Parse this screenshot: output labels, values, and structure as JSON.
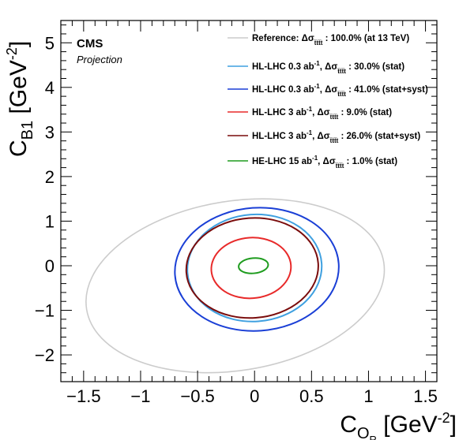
{
  "chart_data": {
    "type": "contour",
    "experiment": "CMS",
    "subtitle": "Projection",
    "xlabel": {
      "base": "C",
      "sub": "O",
      "subsub": "R",
      "unit": "[GeV",
      "exp": "-2",
      "close": "]"
    },
    "ylabel": {
      "base": "C",
      "sub": "B1",
      "unit": "[GeV",
      "exp": "-2",
      "close": "]"
    },
    "xlim": [
      -1.7,
      1.6
    ],
    "ylim": [
      -2.6,
      5.5
    ],
    "x_major_ticks": [
      -1.5,
      -1,
      -0.5,
      0,
      0.5,
      1,
      1.5
    ],
    "x_tick_labels": [
      "−1.5",
      "−1",
      "−0.5",
      "0",
      "0.5",
      "1",
      "1.5"
    ],
    "y_major_ticks": [
      -2,
      -1,
      0,
      1,
      2,
      3,
      4,
      5
    ],
    "y_tick_labels": [
      "−2",
      "−1",
      "0",
      "1",
      "2",
      "3",
      "4",
      "5"
    ],
    "series": [
      {
        "name": "Reference: Δσ_tttt : 100.0% (at 13 TeV)",
        "pre": "Reference: Δσ",
        "lumi": "",
        "post": " : 100.0% (at 13 TeV)",
        "color": "#cccccc",
        "ellipse": {
          "cx": -0.17,
          "cy": -0.45,
          "rx": 1.32,
          "ry": 1.9,
          "rotation_deg": -9
        }
      },
      {
        "name": "HL-LHC 0.3 ab-1, Δσ_tttt : 30.0% (stat)",
        "pre": "HL-LHC 0.3 ab",
        "lumi": "-1",
        "post": ", Δσ",
        "tail": " : 30.0% (stat)",
        "color": "#3fa0e0",
        "ellipse": {
          "cx": 0.0,
          "cy": -0.05,
          "rx": 0.59,
          "ry": 1.2,
          "rotation_deg": -4
        }
      },
      {
        "name": "HL-LHC 0.3 ab-1, Δσ_tttt : 41.0% (stat+syst)",
        "pre": "HL-LHC 0.3 ab",
        "lumi": "-1",
        "post": ", Δσ",
        "tail": " : 41.0% (stat+syst)",
        "color": "#1a3fd6",
        "ellipse": {
          "cx": 0.02,
          "cy": -0.08,
          "rx": 0.72,
          "ry": 1.38,
          "rotation_deg": -4
        }
      },
      {
        "name": "HL-LHC 3 ab-1, Δσ_tttt : 9.0% (stat)",
        "pre": "HL-LHC 3 ab",
        "lumi": "-1",
        "post": ", Δσ",
        "tail": " : 9.0% (stat)",
        "color": "#e82a2a",
        "ellipse": {
          "cx": -0.03,
          "cy": -0.05,
          "rx": 0.35,
          "ry": 0.68,
          "rotation_deg": -4
        }
      },
      {
        "name": "HL-LHC 3 ab-1, Δσ_tttt : 26.0% (stat+syst)",
        "pre": "HL-LHC 3 ab",
        "lumi": "-1",
        "post": ", Δσ",
        "tail": " : 26.0% (stat+syst)",
        "color": "#7a0c0c",
        "ellipse": {
          "cx": -0.02,
          "cy": -0.05,
          "rx": 0.58,
          "ry": 1.12,
          "rotation_deg": -4
        }
      },
      {
        "name": "HE-LHC 15 ab-1, Δσ_tttt : 1.0% (stat)",
        "pre": "HE-LHC 15 ab",
        "lumi": "-1",
        "post": ", Δσ",
        "tail": " : 1.0% (stat)",
        "color": "#1f9c1f",
        "ellipse": {
          "cx": -0.01,
          "cy": 0.0,
          "rx": 0.13,
          "ry": 0.17,
          "rotation_deg": -5
        }
      }
    ],
    "sigma_subscript": "t̅tt̅t",
    "legend_position": "top-right",
    "grid": false
  }
}
